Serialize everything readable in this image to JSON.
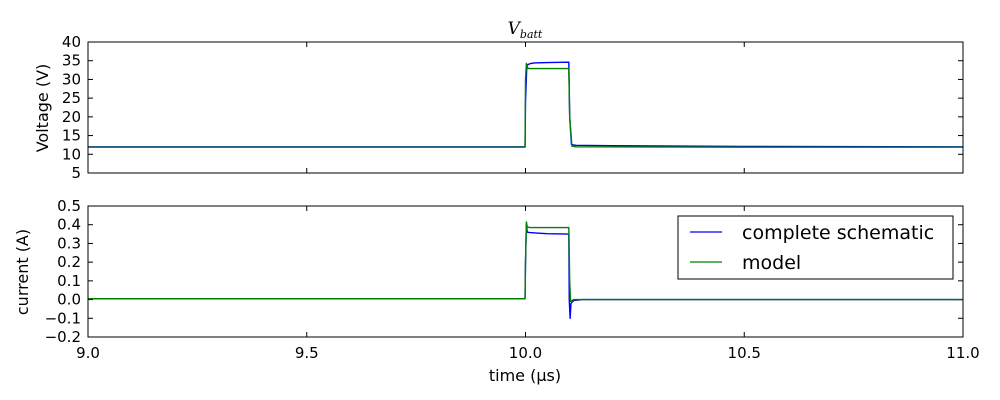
{
  "chart_data": [
    {
      "type": "line",
      "title": "V",
      "title_subscript": "batt",
      "xlabel": "",
      "ylabel": "Voltage (V)",
      "xlim": [
        9.0,
        11.0
      ],
      "ylim": [
        5,
        40
      ],
      "yticks": [
        5,
        10,
        15,
        20,
        25,
        30,
        35,
        40
      ],
      "ytick_labels": [
        "5",
        "10",
        "15",
        "20",
        "25",
        "30",
        "35",
        "40"
      ],
      "grid": false,
      "series": [
        {
          "name": "complete schematic",
          "color": "#0000ff",
          "x": [
            9.0,
            9.999,
            10.0,
            10.003,
            10.006,
            10.01,
            10.02,
            10.05,
            10.099,
            10.101,
            10.105,
            10.115,
            10.2,
            10.5,
            11.0
          ],
          "y": [
            12.0,
            12.0,
            24.0,
            33.5,
            34.0,
            34.2,
            34.4,
            34.5,
            34.6,
            20.0,
            12.6,
            12.4,
            12.3,
            12.1,
            12.0
          ]
        },
        {
          "name": "model",
          "color": "#008000",
          "x": [
            9.0,
            9.999,
            10.0,
            10.002,
            10.005,
            10.01,
            10.099,
            10.101,
            10.106,
            10.115,
            10.5,
            11.0
          ],
          "y": [
            11.9,
            11.9,
            30.0,
            34.3,
            33.0,
            32.9,
            32.9,
            20.0,
            12.2,
            12.0,
            11.9,
            11.9
          ]
        }
      ]
    },
    {
      "type": "line",
      "title": "",
      "xlabel": "time (µs)",
      "ylabel": "current (A)",
      "xlim": [
        9.0,
        11.0
      ],
      "ylim": [
        -0.2,
        0.5
      ],
      "xticks": [
        9.0,
        9.5,
        10.0,
        10.5,
        11.0
      ],
      "xtick_labels": [
        "9.0",
        "9.5",
        "10.0",
        "10.5",
        "11.0"
      ],
      "yticks": [
        -0.2,
        -0.1,
        0.0,
        0.1,
        0.2,
        0.3,
        0.4,
        0.5
      ],
      "ytick_labels": [
        "−0.2",
        "−0.1",
        "0.0",
        "0.1",
        "0.2",
        "0.3",
        "0.4",
        "0.5"
      ],
      "grid": false,
      "legend_position": "top-right",
      "series": [
        {
          "name": "complete schematic",
          "color": "#0000ff",
          "x": [
            9.0,
            9.999,
            10.0,
            10.002,
            10.004,
            10.01,
            10.03,
            10.05,
            10.099,
            10.1,
            10.102,
            10.104,
            10.11,
            10.13,
            10.5,
            11.0
          ],
          "y": [
            0.005,
            0.005,
            0.2,
            0.4,
            0.36,
            0.358,
            0.355,
            0.352,
            0.35,
            0.0,
            -0.1,
            -0.02,
            -0.005,
            0.0,
            0.0,
            0.0
          ]
        },
        {
          "name": "model",
          "color": "#008000",
          "x": [
            9.0,
            9.999,
            10.0,
            10.002,
            10.004,
            10.01,
            10.099,
            10.101,
            10.103,
            10.11,
            10.5,
            11.0
          ],
          "y": [
            0.005,
            0.005,
            0.2,
            0.415,
            0.388,
            0.385,
            0.385,
            0.1,
            -0.01,
            0.0,
            0.0,
            0.0
          ]
        }
      ]
    }
  ],
  "legend": {
    "entries": [
      "complete schematic",
      "model"
    ]
  }
}
